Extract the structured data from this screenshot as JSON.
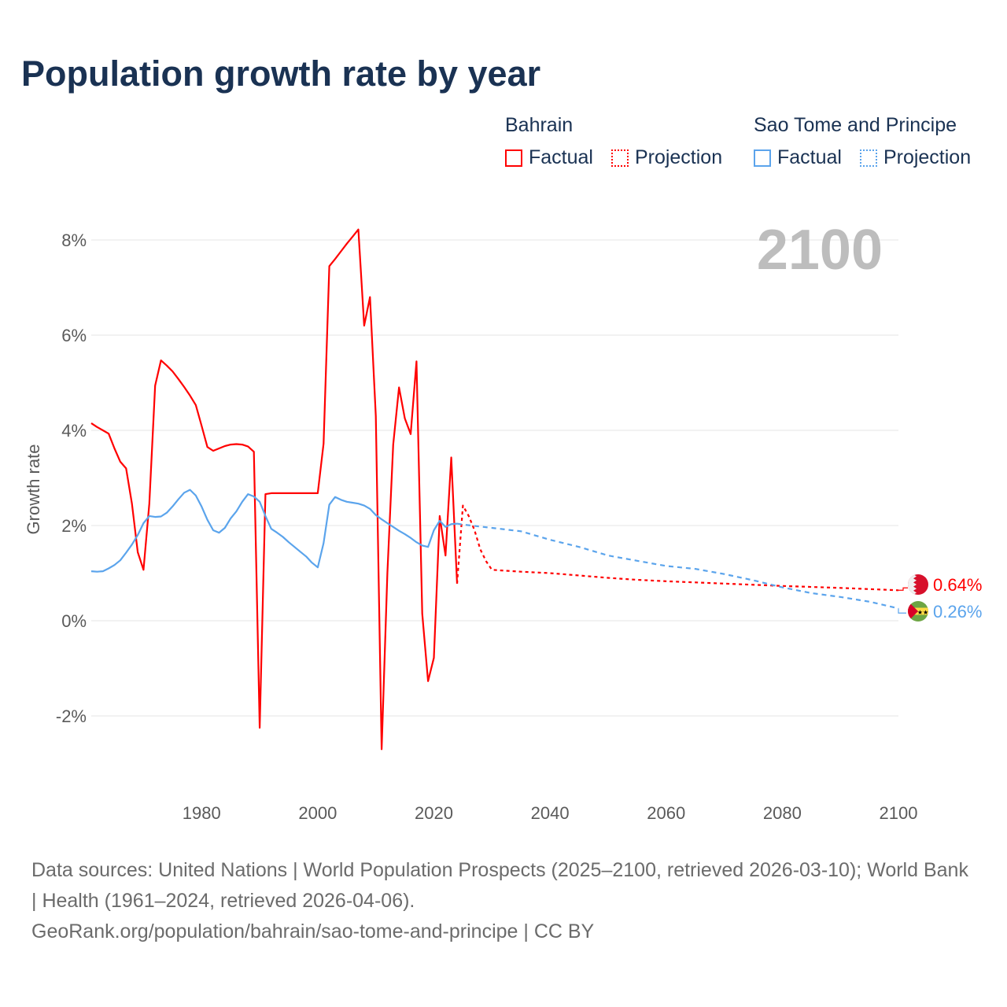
{
  "title": "Population growth rate by year",
  "legend": {
    "groups": [
      {
        "name": "Bahrain",
        "color": "#ff0000",
        "factual": "Factual",
        "projection": "Projection"
      },
      {
        "name": "Sao Tome and Principe",
        "color": "#5ba4ec",
        "factual": "Factual",
        "projection": "Projection"
      }
    ]
  },
  "year_label": "2100",
  "footer": {
    "sources": "Data sources: United Nations | World Population Prospects (2025–2100, retrieved 2026-03-10); World Bank | Health (1961–2024, retrieved 2026-04-06).",
    "credit": "GeoRank.org/population/bahrain/sao-tome-and-principe | CC BY"
  },
  "chart_data": {
    "type": "line",
    "title": "Population growth rate by year",
    "xlabel": "",
    "ylabel": "Growth rate",
    "xlim": [
      1961,
      2100
    ],
    "ylim": [
      -3.3,
      8.5
    ],
    "x_ticks": [
      1980,
      2000,
      2020,
      2040,
      2060,
      2080,
      2100
    ],
    "x_tick_labels": [
      "1980",
      "2000",
      "2020",
      "2040",
      "2060",
      "2080",
      "2100"
    ],
    "y_ticks": [
      -2,
      0,
      2,
      4,
      6,
      8
    ],
    "y_tick_labels": [
      "-2%",
      "0%",
      "2%",
      "4%",
      "6%",
      "8%"
    ],
    "grid": true,
    "legend_position": "top-right",
    "series": [
      {
        "name": "Bahrain",
        "kind": "Factual",
        "color": "#ff0000",
        "x": [
          1961,
          1962,
          1963,
          1964,
          1965,
          1966,
          1967,
          1968,
          1969,
          1970,
          1971,
          1972,
          1973,
          1974,
          1975,
          1976,
          1977,
          1978,
          1979,
          1980,
          1981,
          1982,
          1983,
          1984,
          1985,
          1986,
          1987,
          1988,
          1989,
          1990,
          1991,
          1992,
          1993,
          1994,
          1995,
          1996,
          1997,
          1998,
          1999,
          2000,
          2001,
          2002,
          2003,
          2004,
          2005,
          2006,
          2007,
          2008,
          2009,
          2010,
          2011,
          2012,
          2013,
          2014,
          2015,
          2016,
          2017,
          2018,
          2019,
          2020,
          2021,
          2022,
          2023,
          2024
        ],
        "y": [
          4.15,
          4.07,
          4.0,
          3.93,
          3.62,
          3.34,
          3.2,
          2.46,
          1.44,
          1.07,
          2.46,
          4.94,
          5.47,
          5.36,
          5.24,
          5.08,
          4.91,
          4.73,
          4.53,
          4.1,
          3.65,
          3.57,
          3.62,
          3.67,
          3.7,
          3.71,
          3.7,
          3.66,
          3.55,
          -2.25,
          2.66,
          2.68,
          2.68,
          2.68,
          2.68,
          2.68,
          2.68,
          2.68,
          2.68,
          2.68,
          3.72,
          7.45,
          7.6,
          7.76,
          7.92,
          8.07,
          8.22,
          6.2,
          6.8,
          4.3,
          -2.7,
          1.0,
          3.7,
          4.9,
          4.25,
          3.92,
          5.45,
          0.15,
          -1.27,
          -0.78,
          2.2,
          1.37,
          3.43,
          0.78
        ]
      },
      {
        "name": "Bahrain",
        "kind": "Projection",
        "color": "#ff0000",
        "x": [
          2024,
          2025,
          2026,
          2027,
          2028,
          2029,
          2030,
          2035,
          2040,
          2045,
          2050,
          2055,
          2060,
          2070,
          2080,
          2090,
          2100
        ],
        "y": [
          0.78,
          2.42,
          2.2,
          1.9,
          1.5,
          1.25,
          1.07,
          1.03,
          1.0,
          0.95,
          0.9,
          0.86,
          0.83,
          0.78,
          0.73,
          0.69,
          0.64
        ]
      },
      {
        "name": "Sao Tome and Principe",
        "kind": "Factual",
        "color": "#5ba4ec",
        "x": [
          1961,
          1962,
          1963,
          1964,
          1965,
          1966,
          1967,
          1968,
          1969,
          1970,
          1971,
          1972,
          1973,
          1974,
          1975,
          1976,
          1977,
          1978,
          1979,
          1980,
          1981,
          1982,
          1983,
          1984,
          1985,
          1986,
          1987,
          1988,
          1989,
          1990,
          1991,
          1992,
          1993,
          1994,
          1995,
          1996,
          1997,
          1998,
          1999,
          2000,
          2001,
          2002,
          2003,
          2004,
          2005,
          2006,
          2007,
          2008,
          2009,
          2010,
          2011,
          2012,
          2013,
          2014,
          2015,
          2016,
          2017,
          2018,
          2019,
          2020,
          2021,
          2022,
          2023,
          2024
        ],
        "y": [
          1.04,
          1.03,
          1.04,
          1.1,
          1.17,
          1.27,
          1.43,
          1.6,
          1.8,
          2.05,
          2.2,
          2.18,
          2.19,
          2.27,
          2.4,
          2.55,
          2.69,
          2.75,
          2.63,
          2.4,
          2.12,
          1.9,
          1.85,
          1.95,
          2.15,
          2.3,
          2.5,
          2.66,
          2.61,
          2.5,
          2.2,
          1.93,
          1.85,
          1.76,
          1.65,
          1.55,
          1.45,
          1.35,
          1.22,
          1.12,
          1.63,
          2.44,
          2.6,
          2.54,
          2.5,
          2.48,
          2.46,
          2.42,
          2.35,
          2.22,
          2.13,
          2.05,
          1.97,
          1.89,
          1.82,
          1.74,
          1.65,
          1.58,
          1.55,
          1.9,
          2.1,
          1.97,
          2.03,
          2.04
        ]
      },
      {
        "name": "Sao Tome and Principe",
        "kind": "Projection",
        "color": "#5ba4ec",
        "x": [
          2024,
          2025,
          2030,
          2035,
          2040,
          2045,
          2050,
          2055,
          2060,
          2065,
          2070,
          2075,
          2080,
          2085,
          2090,
          2095,
          2100
        ],
        "y": [
          2.04,
          2.02,
          1.95,
          1.88,
          1.7,
          1.55,
          1.37,
          1.26,
          1.15,
          1.09,
          0.98,
          0.85,
          0.7,
          0.58,
          0.5,
          0.4,
          0.26
        ]
      }
    ],
    "end_labels": [
      {
        "series": "Bahrain",
        "text": "0.64%",
        "color": "#ff0000"
      },
      {
        "series": "Sao Tome and Principe",
        "text": "0.26%",
        "color": "#5ba4ec"
      }
    ]
  }
}
